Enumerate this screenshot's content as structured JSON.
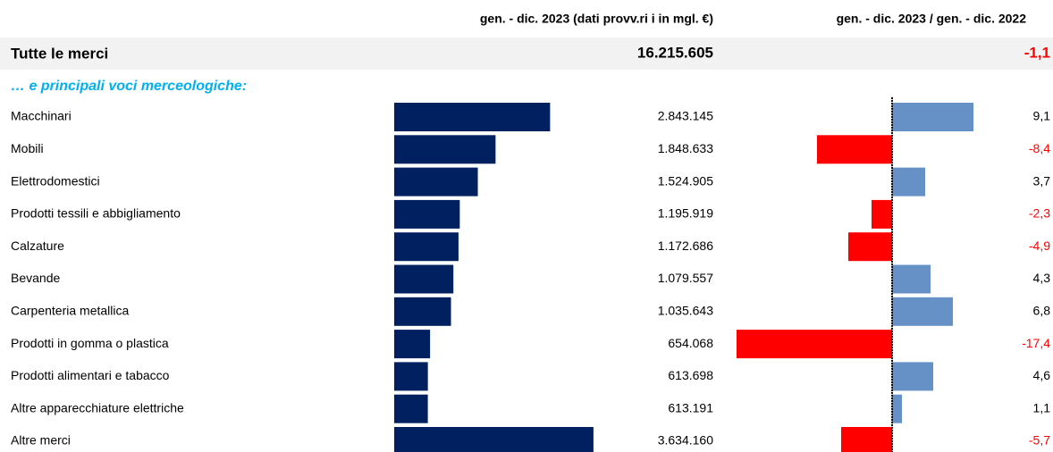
{
  "chart_data": {
    "type": "bar",
    "column_titles": [
      "gen. - dic. 2023 (dati provv.ri i in mgl. €)",
      "gen. - dic. 2023 / gen. - dic. 2022"
    ],
    "total": {
      "label": "Tutte le merci",
      "value": 16215605,
      "value_label": "16.215.605",
      "change": -1.1,
      "change_label": "-1,1"
    },
    "subtitle": "… e principali voci merceologiche:",
    "categories": [
      "Macchinari",
      "Mobili",
      "Elettrodomestici",
      "Prodotti tessili e abbigliamento",
      "Calzature",
      "Bevande",
      "Carpenteria metallica",
      "Prodotti in gomma o plastica",
      "Prodotti alimentari e tabacco",
      "Altre apparecchiature elettriche",
      "Altre merci"
    ],
    "values": [
      2843145,
      1848633,
      1524905,
      1195919,
      1172686,
      1079557,
      1035643,
      654068,
      613698,
      613191,
      3634160
    ],
    "value_labels": [
      "2.843.145",
      "1.848.633",
      "1.524.905",
      "1.195.919",
      "1.172.686",
      "1.079.557",
      "1.035.643",
      "654.068",
      "613.698",
      "613.191",
      "3.634.160"
    ],
    "changes": [
      9.1,
      -8.4,
      3.7,
      -2.3,
      -4.9,
      4.3,
      6.8,
      -17.4,
      4.6,
      1.1,
      -5.7
    ],
    "change_labels": [
      "9,1",
      "-8,4",
      "3,7",
      "-2,3",
      "-4,9",
      "4,3",
      "6,8",
      "-17,4",
      "4,6",
      "1,1",
      "-5,7"
    ],
    "xlim": [
      0,
      6000000
    ],
    "x2lim": [
      -18,
      18
    ],
    "color": "#002060",
    "positive_color": "#6591c7",
    "negative_color": "#ff0000"
  }
}
